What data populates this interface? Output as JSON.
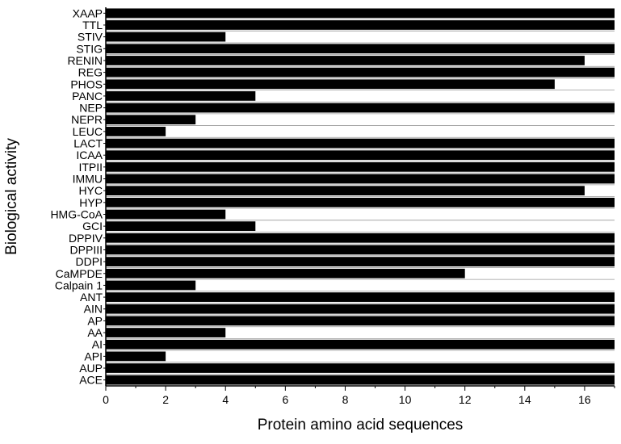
{
  "chart_data": {
    "type": "bar",
    "orientation": "horizontal",
    "title": "",
    "xlabel": "Protein amino acid sequences",
    "ylabel": "Biological activity",
    "xlim": [
      0,
      17
    ],
    "xticks": [
      0,
      2,
      4,
      6,
      8,
      10,
      12,
      14,
      16
    ],
    "grid": false,
    "legend": "none",
    "bar_color": "#000000",
    "categories": [
      "XAAP",
      "TTL",
      "STIV",
      "STIG",
      "RENIN",
      "REG",
      "PHOS",
      "PANC",
      "NEP",
      "NEPR",
      "LEUC",
      "LACT",
      "ICAA",
      "ITPII",
      "IMMU",
      "HYC",
      "HYP",
      "HMG-CoA",
      "GCI",
      "DPPIV",
      "DPPIII",
      "DDPI",
      "CaMPDE",
      "Calpain 1",
      "ANT",
      "AIN",
      "AP",
      "AA",
      "AI",
      "API",
      "AUP",
      "ACE"
    ],
    "values": [
      17,
      17,
      4,
      17,
      16,
      17,
      15,
      5,
      17,
      3,
      2,
      17,
      17,
      17,
      17,
      16,
      17,
      4,
      5,
      17,
      17,
      17,
      12,
      3,
      17,
      17,
      17,
      4,
      17,
      2,
      17,
      17
    ]
  }
}
